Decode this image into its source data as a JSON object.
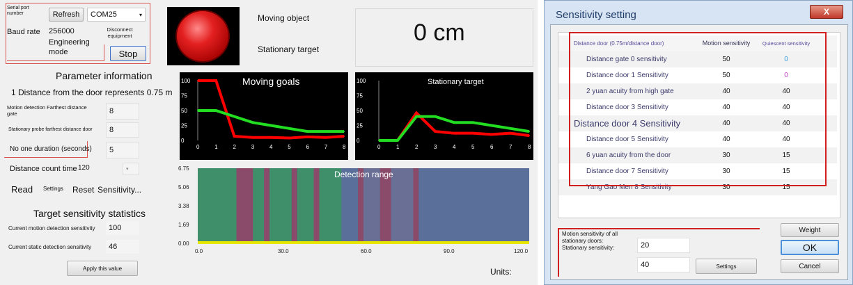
{
  "app": {
    "serial_port_label": "Serial port number",
    "refresh_label": "Refresh",
    "port_value": "COM25",
    "baud_label": "Baud rate",
    "baud_value": "256000",
    "disconnect_label": "Disconnect equipment",
    "engineering_label": "Engineering mode",
    "stop_label": "Stop",
    "param_title": "Parameter information",
    "distance_note": "1 Distance from the door represents 0.75 m",
    "motion_far_label": "Motion detection Farthest distance gate",
    "motion_far_value": "8",
    "stationary_far_label": "Stationary probe farthest distance door",
    "stationary_far_value": "8",
    "no_one_label": "No one duration (seconds)",
    "no_one_value": "5",
    "distance_count_label": "Distance count time",
    "distance_count_value": "120",
    "read_label": "Read",
    "settings_label": "Settings",
    "reset_label": "Reset",
    "sensitivity_label": "Sensitivity...",
    "stats_title": "Target sensitivity statistics",
    "motion_sens_label": "Current motion detection sensitivity",
    "motion_sens_value": "100",
    "static_sens_label": "Current static detection sensitivity",
    "static_sens_value": "46",
    "apply_label": "Apply this value",
    "moving_object_label": "Moving object",
    "stationary_target_label": "Stationary target",
    "distance_readout": "0 cm",
    "units_label": "Units:",
    "colors": {
      "indicator": "#d11a1a",
      "motion_line": "#ff0000",
      "static_line": "#22dd22",
      "detection_bg": "#5a6f9a"
    }
  },
  "chart_data": [
    {
      "type": "line",
      "title": "Moving goals",
      "x": [
        0,
        1,
        2,
        3,
        4,
        5,
        6,
        7,
        8
      ],
      "x_ticks": [
        "0",
        "1",
        "2",
        "3",
        "4",
        "5",
        "6",
        "7",
        "8"
      ],
      "y_ticks": [
        "0",
        "25",
        "50",
        "75",
        "100"
      ],
      "ylim": [
        0,
        100
      ],
      "series": [
        {
          "values": [
            100,
            100,
            7,
            5,
            5,
            4,
            6,
            5,
            7
          ],
          "color": "#ff0000"
        },
        {
          "values": [
            50,
            50,
            40,
            30,
            25,
            20,
            15,
            15,
            15
          ],
          "color": "#22dd22"
        }
      ]
    },
    {
      "type": "line",
      "title": "Stationary target",
      "x": [
        0,
        1,
        2,
        3,
        4,
        5,
        6,
        7,
        8
      ],
      "x_ticks": [
        "0",
        "1",
        "2",
        "3",
        "4",
        "5",
        "6",
        "7",
        "8"
      ],
      "y_ticks": [
        "0",
        "25",
        "50",
        "75",
        "100"
      ],
      "ylim": [
        0,
        100
      ],
      "series": [
        {
          "values": [
            0,
            0,
            46,
            15,
            12,
            12,
            10,
            12,
            8
          ],
          "color": "#ff0000"
        },
        {
          "values": [
            0,
            0,
            40,
            40,
            30,
            30,
            25,
            20,
            15
          ],
          "color": "#22dd22"
        }
      ]
    },
    {
      "type": "heatmap",
      "title": "Detection range",
      "x_ticks": [
        "0.0",
        "30.0",
        "60.0",
        "90.0",
        "120.0"
      ],
      "y_ticks": [
        "0.00",
        "1.69",
        "3.38",
        "5.06",
        "6.75"
      ],
      "xlim": [
        0,
        120
      ]
    }
  ],
  "dialog": {
    "title": "Sensitivity setting",
    "close_label": "X",
    "col_headers": [
      "Distance door (0.75m/distance door)",
      "Motion sensitivity",
      "Quiescent sensitivity"
    ],
    "rows": [
      {
        "name": "Distance gate 0 sensitivity",
        "motion": "50",
        "quiescent": "0"
      },
      {
        "name": "Distance door 1 Sensitivity",
        "motion": "50",
        "quiescent": "0"
      },
      {
        "name": "2 yuan acuity from high gate",
        "motion": "40",
        "quiescent": "40"
      },
      {
        "name": "Distance door 3 Sensitivity",
        "motion": "40",
        "quiescent": "40"
      },
      {
        "name": "Distance door 4 Sensitivity",
        "motion": "40",
        "quiescent": "40"
      },
      {
        "name": "Distance door 5 Sensitivity",
        "motion": "40",
        "quiescent": "40"
      },
      {
        "name": "6 yuan acuity from the door",
        "motion": "30",
        "quiescent": "15"
      },
      {
        "name": "Distance door 7 Sensitivity",
        "motion": "30",
        "quiescent": "15"
      },
      {
        "name": "Yang Gao Men 8 Sensitivity",
        "motion": "30",
        "quiescent": "15"
      }
    ],
    "all_label": "Motion sensitivity of all stationary doors: Stationary sensitivity:",
    "all_motion_value": "20",
    "all_static_value": "40",
    "settings_label": "Settings",
    "weight_label": "Weight",
    "ok_label": "OK",
    "cancel_label": "Cancel"
  }
}
